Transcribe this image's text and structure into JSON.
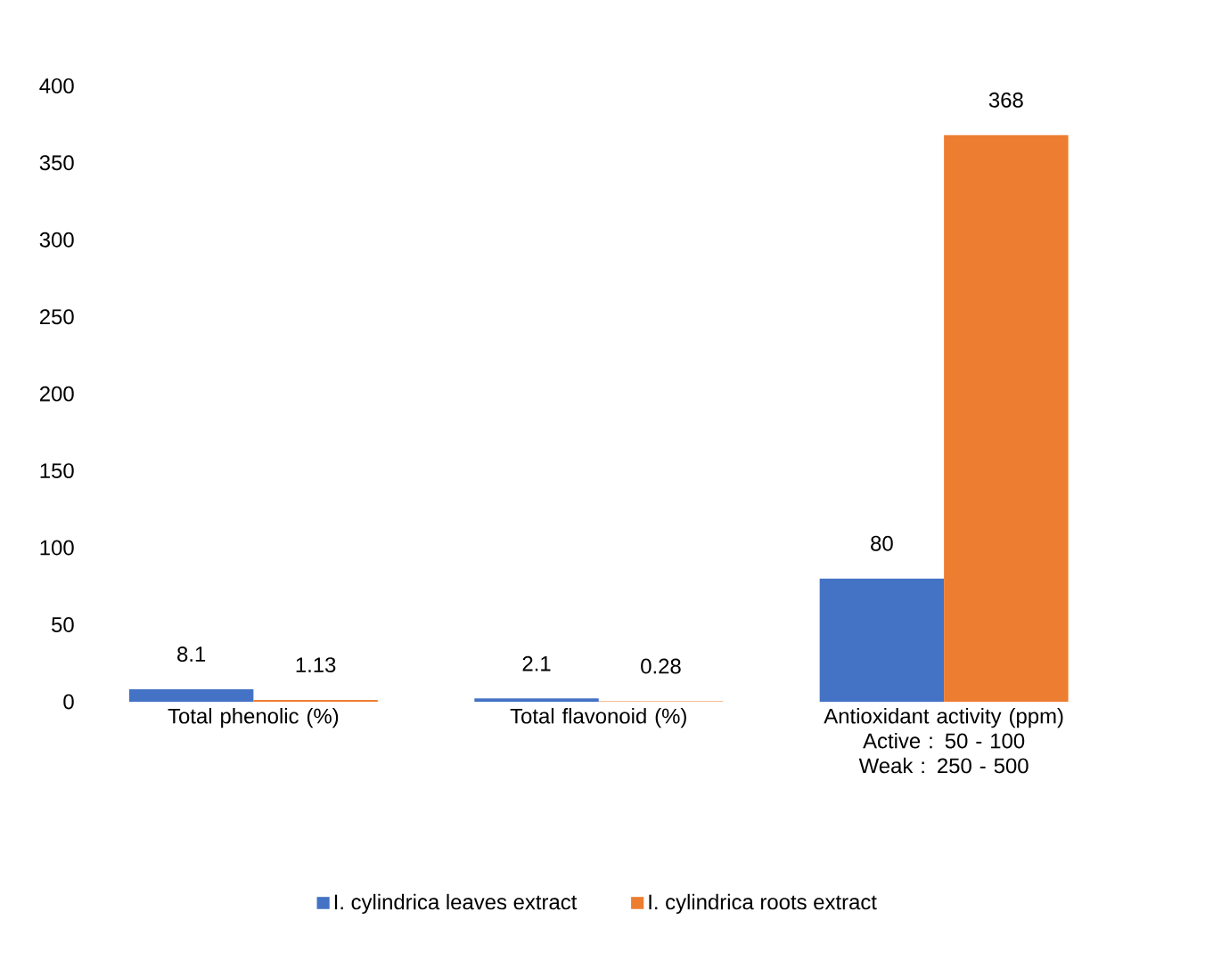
{
  "chart_data": {
    "type": "bar",
    "categories": [
      "Total phenolic (%)",
      "Total flavonoid (%)",
      "Antioxidant activity (ppm)"
    ],
    "series": [
      {
        "name": "I. cylindrica leaves extract",
        "color": "#4472c4",
        "values": [
          8.1,
          2.1,
          80
        ]
      },
      {
        "name": "I. cylindrica roots extract",
        "color": "#ed7d31",
        "values": [
          1.13,
          0.28,
          368
        ]
      }
    ],
    "annotations": [
      "Active :   50 - 100",
      "Weak  : 250 - 500"
    ],
    "ylim": [
      0,
      400
    ],
    "yticks": [
      0,
      50,
      100,
      150,
      200,
      250,
      300,
      350,
      400
    ],
    "data_labels": true,
    "grid": false,
    "legend": "bottom"
  }
}
